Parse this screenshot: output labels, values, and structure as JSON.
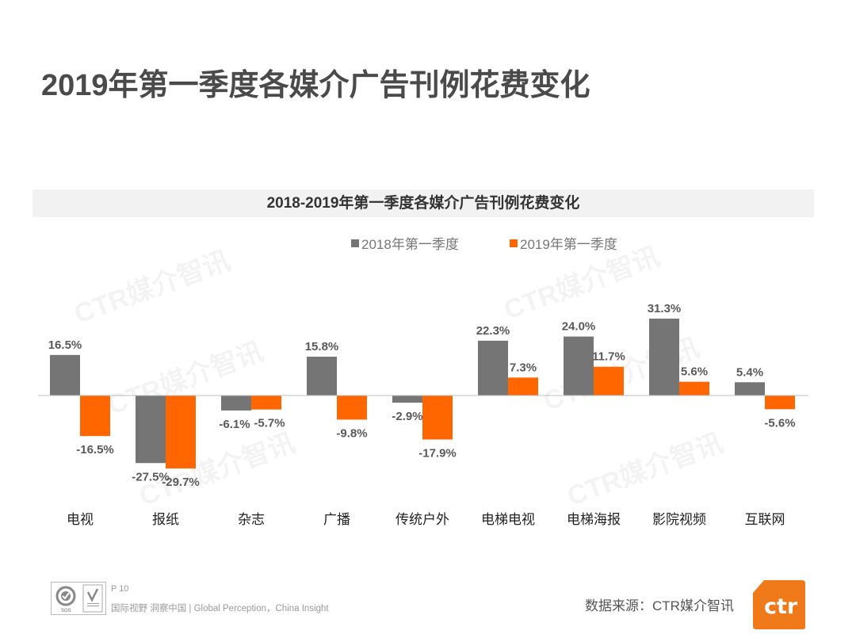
{
  "page": {
    "title": "2019年第一季度各媒介广告刊例花费变化",
    "watermark_text": "CTR媒介智讯"
  },
  "colors": {
    "series_2018": "#757575",
    "series_2019": "#ff6600",
    "brand_orange": "#f07a1a",
    "axis": "#bfbfbf",
    "label_text": "#595959"
  },
  "chart_data": {
    "type": "bar",
    "title": "2018-2019年第一季度各媒介广告刊例花费变化",
    "categories": [
      "电视",
      "报纸",
      "杂志",
      "广播",
      "传统户外",
      "电梯电视",
      "电梯海报",
      "影院视频",
      "互联网"
    ],
    "series": [
      {
        "name": "2018年第一季度",
        "values": [
          16.5,
          -27.5,
          -6.1,
          15.8,
          -2.9,
          22.3,
          24.0,
          31.3,
          5.4
        ],
        "labels": [
          "16.5%",
          "-27.5%",
          "-6.1%",
          "15.8%",
          "-2.9%",
          "22.3%",
          "24.0%",
          "31.3%",
          "5.4%"
        ]
      },
      {
        "name": "2019年第一季度",
        "values": [
          -16.5,
          -29.7,
          -5.7,
          -9.8,
          -17.9,
          7.3,
          11.7,
          5.6,
          -5.6
        ],
        "labels": [
          "-16.5%",
          "-29.7%",
          "-5.7%",
          "-9.8%",
          "-17.9%",
          "7.3%",
          "11.7%",
          "5.6%",
          "-5.6%"
        ]
      }
    ],
    "xlabel": "",
    "ylabel": "",
    "unit": "%",
    "ylim": [
      -32,
      34
    ],
    "grid": false,
    "legend": "top-center"
  },
  "footer": {
    "page_number": "P 10",
    "slogan": "国际视野  洞察中国 | Global Perception，China Insight",
    "cert_label": "SGS",
    "source": "数据来源：CTR媒介智讯",
    "logo_text": "ctr",
    "registered_mark": "®"
  }
}
